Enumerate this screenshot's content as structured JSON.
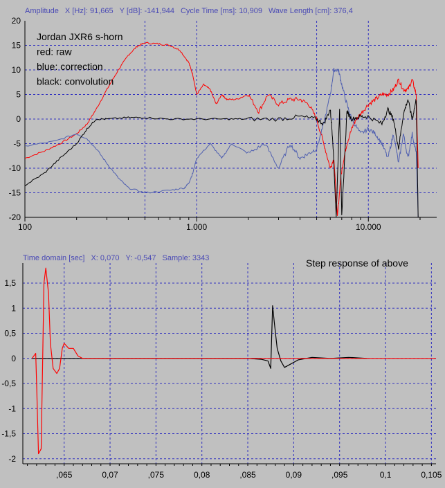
{
  "top": {
    "readout": [
      "Amplitude",
      "X [Hz]: 91,665",
      "Y [dB]: -141,944",
      "Cycle Time [ms]: 10,909",
      "Wave Length [cm]: 376,4"
    ],
    "legend": [
      "Jordan JXR6 s-horn",
      "red: raw",
      "blue: correction",
      "black: convolution"
    ],
    "y_ticks": [
      "20",
      "15",
      "10",
      "5",
      "0",
      "-5",
      "-10",
      "-15",
      "-20"
    ],
    "x_ticks": [
      "100",
      "1.000",
      "10.000"
    ]
  },
  "bottom": {
    "readout": [
      "Time domain [sec]",
      "X: 0,070",
      "Y: -0,547",
      "Sample: 3343"
    ],
    "title": "Step response of above",
    "y_ticks": [
      "1,5",
      "1",
      "0,5",
      "0",
      "-0,5",
      "-1",
      "-1,5",
      "-2"
    ],
    "x_ticks": [
      ",065",
      "0,07",
      ",075",
      "0,08",
      ",085",
      "0,09",
      ",095",
      "0,1",
      "0,105"
    ]
  },
  "colors": {
    "raw": "#ff0000",
    "correction": "#5060b0",
    "convolution": "#000000",
    "grid": "#3030c0",
    "readout": "#4a4ab5"
  },
  "chart_data": [
    {
      "type": "line",
      "title": "Amplitude",
      "x_scale": "log",
      "xlim": [
        100,
        25000
      ],
      "ylim": [
        -20,
        20
      ],
      "grid": true,
      "series": [
        {
          "name": "red: raw",
          "color": "#ff0000",
          "x": [
            100,
            130,
            160,
            200,
            230,
            260,
            300,
            350,
            400,
            450,
            500,
            600,
            700,
            800,
            900,
            950,
            1000,
            1100,
            1200,
            1300,
            1400,
            1500,
            1700,
            2000,
            2300,
            2600,
            3000,
            3500,
            4000,
            4500,
            5000,
            5500,
            6000,
            6300,
            6600,
            6900,
            7200,
            7500,
            8000,
            8500,
            9000,
            10000,
            11000,
            12000,
            13000,
            14000,
            15000,
            16000,
            17000,
            18000,
            19000,
            19500
          ],
          "y": [
            -8,
            -6.5,
            -5,
            -3,
            -1,
            2,
            6,
            10,
            13,
            14.8,
            15.5,
            15.3,
            15,
            14,
            11.5,
            9,
            5,
            7,
            6,
            3,
            5,
            4,
            4,
            5,
            1.5,
            5,
            3,
            4,
            4,
            3,
            0,
            -5,
            -10,
            -8,
            -20,
            -12,
            -8,
            -5,
            -2,
            0,
            1,
            3,
            4,
            5,
            5,
            6,
            8,
            6,
            6,
            8,
            5,
            -10
          ]
        },
        {
          "name": "blue: correction",
          "color": "#5060b0",
          "x": [
            100,
            150,
            200,
            230,
            260,
            300,
            350,
            400,
            500,
            700,
            850,
            900,
            950,
            1000,
            1200,
            1400,
            1600,
            2000,
            2500,
            3000,
            3500,
            4000,
            4500,
            5000,
            5500,
            6000,
            6300,
            6700,
            7000,
            7500,
            8000,
            9000,
            10000,
            11000,
            12000,
            13000,
            14000,
            15000,
            16000,
            17000,
            18000,
            19000,
            19500
          ],
          "y": [
            -5.5,
            -4.5,
            -3,
            -4,
            -6,
            -9,
            -12,
            -14,
            -15,
            -14.5,
            -14,
            -13,
            -11,
            -8,
            -5,
            -8,
            -5,
            -7,
            -5,
            -10,
            -5,
            -8,
            -7,
            -6,
            -1,
            5,
            10,
            10,
            7,
            3,
            0,
            -3,
            -2,
            -3,
            -5,
            -8,
            -3,
            -9,
            -3,
            -8,
            -3,
            -7,
            -20
          ]
        },
        {
          "name": "black: convolution",
          "color": "#000000",
          "x": [
            100,
            130,
            160,
            200,
            230,
            260,
            300,
            400,
            500,
            700,
            1000,
            1500,
            2000,
            3000,
            4000,
            5000,
            5500,
            6000,
            6200,
            6500,
            6800,
            7000,
            7500,
            8000,
            9000,
            10000,
            12000,
            13000,
            14000,
            15000,
            16000,
            17000,
            18000,
            19000,
            19500
          ],
          "y": [
            -13.5,
            -11,
            -8,
            -5,
            -2,
            0,
            0,
            0.3,
            0.3,
            0,
            0,
            0,
            0,
            0,
            0.5,
            0,
            -1,
            2,
            -4,
            -20,
            2,
            -20,
            1.5,
            0,
            0.5,
            0.5,
            -1,
            2,
            0,
            -6,
            1,
            4,
            0,
            4,
            -20
          ]
        }
      ]
    },
    {
      "type": "line",
      "title": "Step response of above",
      "xlim": [
        0.0605,
        0.1055
      ],
      "ylim": [
        -2.1,
        1.9
      ],
      "grid": true,
      "series": [
        {
          "name": "",
          "color": "#000000",
          "x": [
            0.0615,
            0.085,
            0.0865,
            0.0872,
            0.0875,
            0.0877,
            0.0879,
            0.0882,
            0.0886,
            0.089,
            0.0895,
            0.0905,
            0.092,
            0.094,
            0.096,
            0.098
          ],
          "y": [
            0,
            0,
            -0.02,
            -0.05,
            -0.2,
            1.05,
            0.7,
            0.2,
            -0.05,
            -0.18,
            -0.13,
            -0.03,
            0.02,
            0,
            0.02,
            0
          ]
        },
        {
          "name": "",
          "color": "#ff0000",
          "x": [
            0.0615,
            0.0619,
            0.062,
            0.0622,
            0.0625,
            0.0628,
            0.063,
            0.0633,
            0.0635,
            0.0638,
            0.0642,
            0.0645,
            0.0648,
            0.065,
            0.0655,
            0.066,
            0.0665,
            0.067,
            0.1055
          ],
          "y": [
            0,
            0.1,
            -0.5,
            -1.9,
            -1.8,
            1.5,
            1.8,
            1.3,
            0.3,
            -0.2,
            -0.3,
            -0.2,
            0.2,
            0.3,
            0.2,
            0.2,
            0.05,
            0,
            0
          ]
        }
      ]
    }
  ]
}
